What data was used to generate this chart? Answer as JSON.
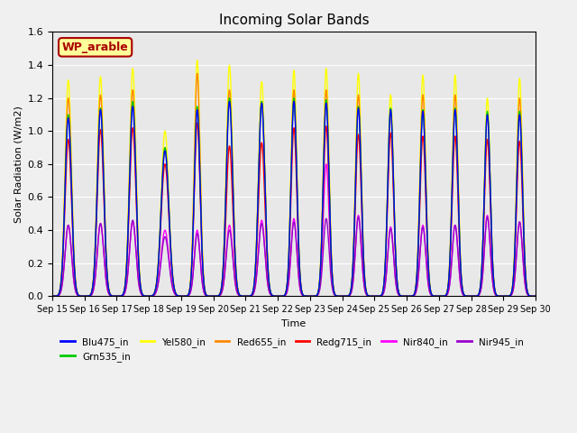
{
  "title": "Incoming Solar Bands",
  "xlabel": "Time",
  "ylabel": "Solar Radiation (W/m2)",
  "annotation": "WP_arable",
  "ylim": [
    0,
    1.6
  ],
  "n_days": 15,
  "x_tick_labels": [
    "Sep 15",
    "Sep 16",
    "Sep 17",
    "Sep 18",
    "Sep 19",
    "Sep 20",
    "Sep 21",
    "Sep 22",
    "Sep 23",
    "Sep 24",
    "Sep 25",
    "Sep 26",
    "Sep 27",
    "Sep 28",
    "Sep 29",
    "Sep 30"
  ],
  "legend_labels": [
    "Blu475_in",
    "Grn535_in",
    "Yel580_in",
    "Red655_in",
    "Redg715_in",
    "Nir840_in",
    "Nir945_in"
  ],
  "legend_colors": [
    "#0000ff",
    "#00cc00",
    "#ffff00",
    "#ff8800",
    "#ff0000",
    "#ff00ff",
    "#9900cc"
  ],
  "color_map": {
    "Blu475_in": "#0000ff",
    "Grn535_in": "#00cc00",
    "Yel580_in": "#ffff00",
    "Red655_in": "#ff8800",
    "Redg715_in": "#ff0000",
    "Nir840_in": "#ff00ff",
    "Nir945_in": "#9900cc"
  },
  "plot_order": [
    "Yel580_in",
    "Red655_in",
    "Nir840_in",
    "Nir945_in",
    "Redg715_in",
    "Grn535_in",
    "Blu475_in"
  ],
  "day_peaks": {
    "Yel580_in": [
      1.31,
      1.33,
      1.38,
      1.0,
      1.43,
      1.4,
      1.3,
      1.37,
      1.38,
      1.35,
      1.22,
      1.34,
      1.34,
      1.2,
      1.32
    ],
    "Red655_in": [
      1.2,
      1.22,
      1.25,
      0.9,
      1.35,
      1.25,
      1.18,
      1.25,
      1.25,
      1.22,
      1.11,
      1.22,
      1.22,
      1.1,
      1.2
    ],
    "Redg715_in": [
      0.95,
      1.01,
      1.02,
      0.8,
      1.05,
      0.91,
      0.93,
      1.02,
      1.03,
      0.98,
      0.99,
      0.97,
      0.97,
      0.95,
      0.94
    ],
    "Nir840_in": [
      0.43,
      0.44,
      0.45,
      0.4,
      0.4,
      0.43,
      0.46,
      0.47,
      0.8,
      0.49,
      0.42,
      0.43,
      0.43,
      0.49,
      0.45
    ],
    "Nir945_in": [
      0.43,
      0.44,
      0.46,
      0.36,
      0.38,
      0.4,
      0.44,
      0.45,
      0.47,
      0.48,
      0.41,
      0.42,
      0.43,
      0.48,
      0.45
    ],
    "Blu475_in": [
      1.08,
      1.13,
      1.15,
      0.88,
      1.13,
      1.18,
      1.17,
      1.18,
      1.17,
      1.14,
      1.13,
      1.12,
      1.13,
      1.1,
      1.1
    ],
    "Grn535_in": [
      1.1,
      1.14,
      1.18,
      0.9,
      1.15,
      1.2,
      1.18,
      1.2,
      1.19,
      1.15,
      1.14,
      1.13,
      1.14,
      1.12,
      1.12
    ]
  },
  "day_widths": [
    0.1,
    0.1,
    0.1,
    0.12,
    0.09,
    0.1,
    0.1,
    0.09,
    0.09,
    0.09,
    0.09,
    0.09,
    0.09,
    0.09,
    0.09
  ],
  "bg_color": "#e8e8e8",
  "fig_bg_color": "#f0f0f0",
  "annotation_bg": "#ffff99",
  "annotation_fg": "#aa0000"
}
